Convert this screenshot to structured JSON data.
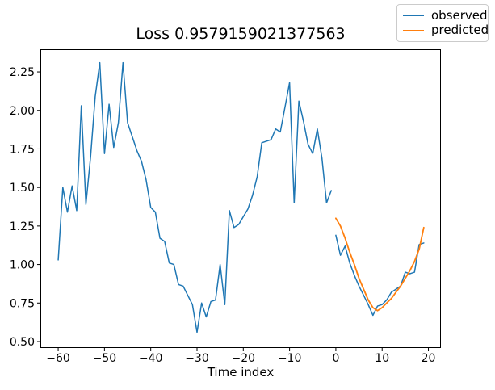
{
  "figure": {
    "title": "Loss 0.9579159021377563",
    "xlabel": "Time index",
    "background": "#ffffff"
  },
  "legend": {
    "items": [
      {
        "label": "observed",
        "color": "#1f77b4"
      },
      {
        "label": "predicted",
        "color": "#ff7f0e"
      }
    ]
  },
  "chart_data": {
    "type": "line",
    "title": "Loss 0.9579159021377563",
    "xlabel": "Time index",
    "ylabel": "",
    "grid": false,
    "legend_position": "upper right, outside axes",
    "xlim": [
      -63.85,
      22.7
    ],
    "ylim": [
      0.458,
      2.397
    ],
    "x_ticks": [
      -60,
      -50,
      -40,
      -30,
      -20,
      -10,
      0,
      10,
      20
    ],
    "x_tick_labels": [
      "−60",
      "−50",
      "−40",
      "−30",
      "−20",
      "−10",
      "0",
      "10",
      "20"
    ],
    "y_ticks": [
      0.5,
      0.75,
      1.0,
      1.25,
      1.5,
      1.75,
      2.0,
      2.25
    ],
    "y_tick_labels": [
      "0.50",
      "0.75",
      "1.00",
      "1.25",
      "1.50",
      "1.75",
      "2.00",
      "2.25"
    ],
    "series": [
      {
        "name": "observed",
        "color": "#1f77b4",
        "line_width": 1.5,
        "segments": [
          {
            "x_start": -60,
            "x_step": 1,
            "values": [
              1.03,
              1.5,
              1.34,
              1.51,
              1.35,
              2.03,
              1.39,
              1.7,
              2.09,
              2.31,
              1.72,
              2.04,
              1.76,
              1.92,
              2.31,
              1.92,
              1.83,
              1.74,
              1.67,
              1.55,
              1.37,
              1.34,
              1.17,
              1.15,
              1.01,
              1.0,
              0.87,
              0.86,
              0.8,
              0.74,
              0.56,
              0.75,
              0.66,
              0.76,
              0.77,
              1.0,
              0.74,
              1.35,
              1.24,
              1.26,
              1.31,
              1.36,
              1.45,
              1.57,
              1.79,
              1.8,
              1.81,
              1.88,
              1.86,
              2.02,
              2.18,
              1.4,
              2.06,
              1.93,
              1.78,
              1.72,
              1.88,
              1.69,
              1.4,
              1.48
            ]
          },
          {
            "x_start": 0,
            "x_step": 1,
            "values": [
              1.19,
              1.06,
              1.12,
              1.01,
              0.93,
              0.86,
              0.8,
              0.74,
              0.67,
              0.73,
              0.74,
              0.77,
              0.82,
              0.84,
              0.86,
              0.95,
              0.94,
              0.95,
              1.13,
              1.14
            ]
          }
        ]
      },
      {
        "name": "predicted",
        "color": "#ff7f0e",
        "line_width": 1.8,
        "segments": [
          {
            "x_start": 0,
            "x_step": 1,
            "values": [
              1.3,
              1.25,
              1.17,
              1.08,
              1.0,
              0.91,
              0.84,
              0.77,
              0.72,
              0.7,
              0.72,
              0.75,
              0.78,
              0.82,
              0.86,
              0.91,
              0.96,
              1.02,
              1.1,
              1.24
            ]
          }
        ]
      }
    ]
  }
}
